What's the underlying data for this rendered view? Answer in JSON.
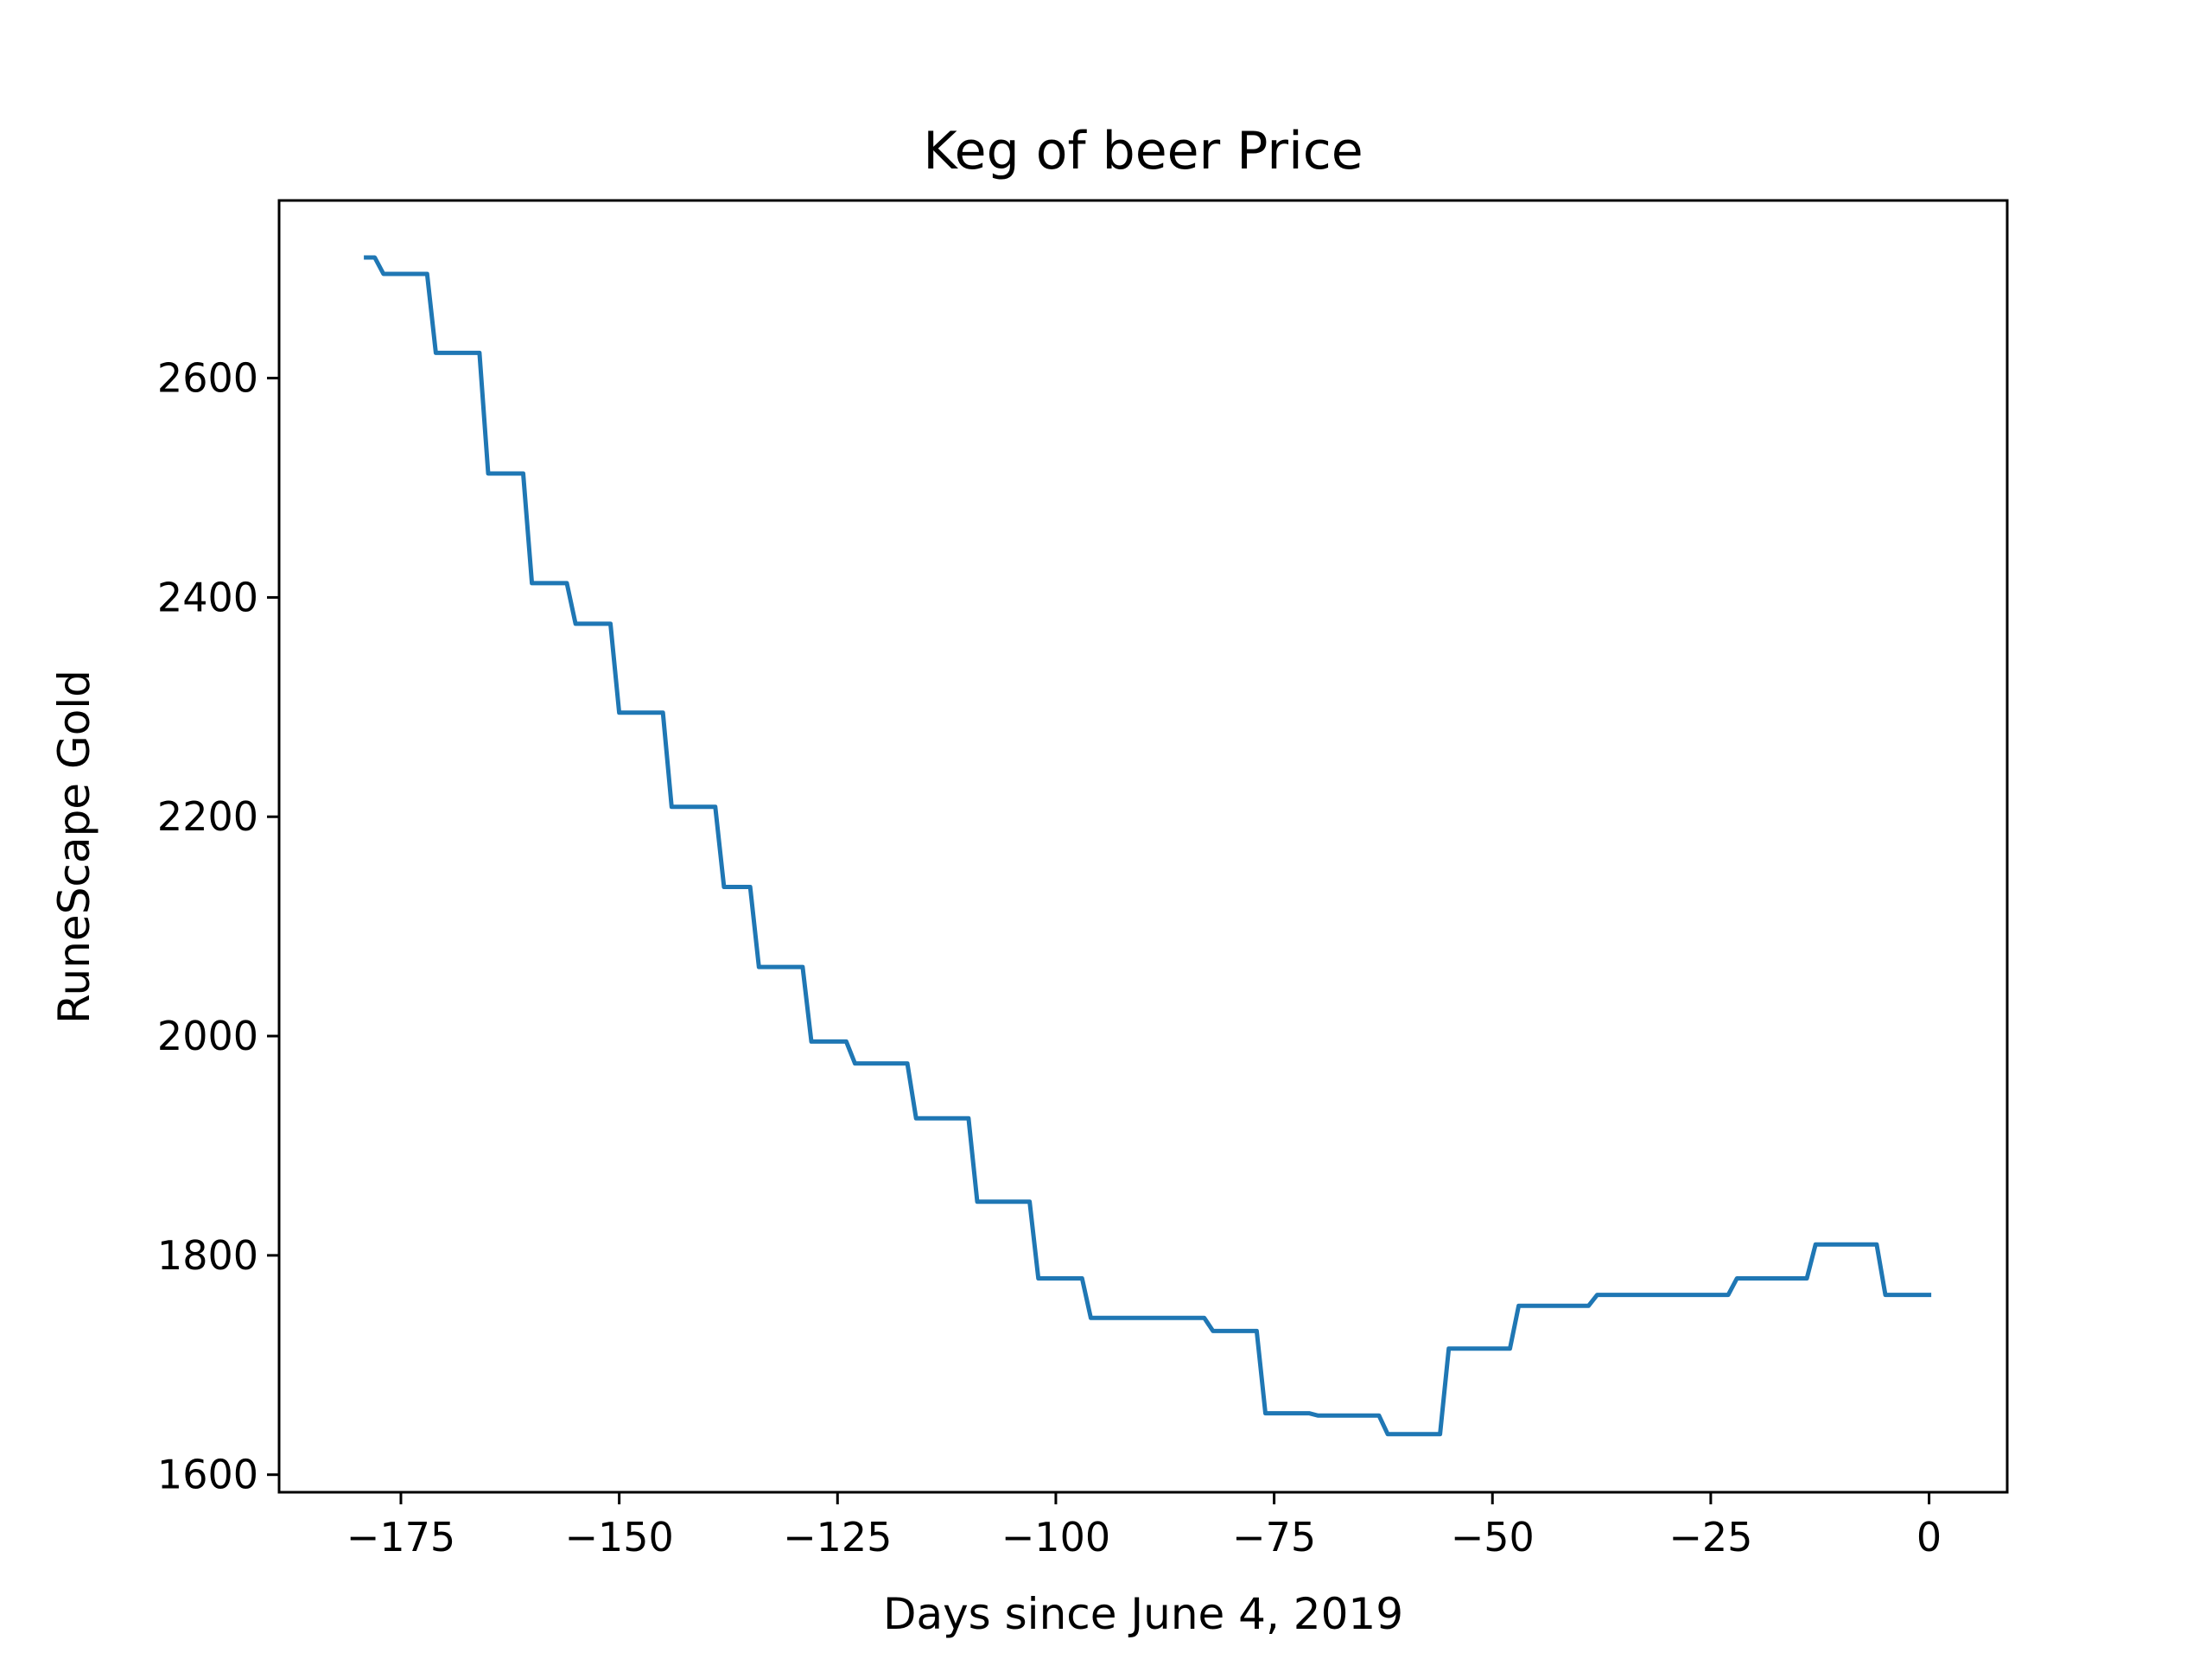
{
  "chart_data": {
    "type": "line",
    "title": "Keg of beer Price",
    "xlabel": "Days since June 4, 2019",
    "ylabel": "RuneScape Gold",
    "xlim": [
      -188.95,
      8.95
    ],
    "ylim": [
      1584,
      2762
    ],
    "x_ticks": [
      -175,
      -150,
      -125,
      -100,
      -75,
      -50,
      -25,
      0
    ],
    "x_tick_labels": [
      "−175",
      "−150",
      "−125",
      "−100",
      "−75",
      "−50",
      "−25",
      "0"
    ],
    "y_ticks": [
      1600,
      1800,
      2000,
      2200,
      2400,
      2600
    ],
    "y_tick_labels": [
      "1600",
      "1800",
      "2000",
      "2200",
      "2400",
      "2600"
    ],
    "grid": false,
    "line_color": "#1f77b4",
    "series": [
      {
        "x": [
          -179,
          -178,
          -177,
          -172,
          -171,
          -166,
          -165,
          -161,
          -160,
          -156,
          -155,
          -151,
          -150,
          -145,
          -144,
          -139,
          -138,
          -135,
          -134,
          -129,
          -128,
          -124,
          -123,
          -117,
          -116,
          -110,
          -109,
          -103,
          -102,
          -97,
          -96,
          -83,
          -82,
          -77,
          -76,
          -71,
          -70,
          -63,
          -62,
          -56,
          -55,
          -48,
          -47,
          -39,
          -38,
          -23,
          -22,
          -14,
          -13,
          -6,
          -5,
          0
        ],
        "y": [
          2710,
          2710,
          2695,
          2695,
          2623,
          2623,
          2513,
          2513,
          2413,
          2413,
          2376,
          2376,
          2295,
          2295,
          2209,
          2209,
          2136,
          2136,
          2063,
          2063,
          1995,
          1995,
          1975,
          1975,
          1925,
          1925,
          1849,
          1849,
          1779,
          1779,
          1743,
          1743,
          1731,
          1731,
          1656,
          1656,
          1654,
          1654,
          1637,
          1637,
          1715,
          1715,
          1754,
          1754,
          1764,
          1764,
          1779,
          1779,
          1810,
          1810,
          1764,
          1764
        ]
      }
    ]
  }
}
